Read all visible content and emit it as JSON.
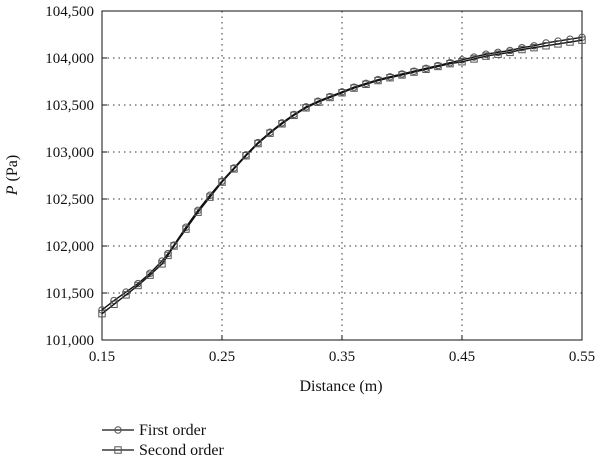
{
  "chart_data": {
    "type": "line",
    "title": "",
    "xlabel": "Distance (m)",
    "ylabel_symbol": "P",
    "ylabel_unit": " (Pa)",
    "xlim": [
      0.15,
      0.55
    ],
    "ylim": [
      101000,
      104500
    ],
    "xticks": [
      "0.15",
      "0.25",
      "0.35",
      "0.45",
      "0.55"
    ],
    "yticks": [
      "101,000",
      "101,500",
      "102,000",
      "102,500",
      "103,000",
      "103,500",
      "104,000",
      "104,500"
    ],
    "grid": true,
    "legend_position": "bottom-left",
    "series": [
      {
        "name": "First order",
        "marker": "circle",
        "x": [
          0.15,
          0.16,
          0.17,
          0.18,
          0.19,
          0.2,
          0.205,
          0.21,
          0.22,
          0.23,
          0.24,
          0.25,
          0.26,
          0.27,
          0.28,
          0.29,
          0.3,
          0.31,
          0.32,
          0.33,
          0.34,
          0.35,
          0.36,
          0.37,
          0.38,
          0.39,
          0.4,
          0.41,
          0.42,
          0.43,
          0.44,
          0.45,
          0.46,
          0.47,
          0.48,
          0.49,
          0.5,
          0.51,
          0.52,
          0.53,
          0.54,
          0.55
        ],
        "y": [
          101320,
          101420,
          101510,
          101600,
          101710,
          101840,
          101920,
          102010,
          102200,
          102380,
          102540,
          102690,
          102830,
          102970,
          103100,
          103210,
          103310,
          103400,
          103480,
          103540,
          103590,
          103640,
          103690,
          103730,
          103770,
          103800,
          103830,
          103860,
          103890,
          103920,
          103950,
          103980,
          104010,
          104040,
          104060,
          104080,
          104110,
          104130,
          104160,
          104180,
          104200,
          104220
        ]
      },
      {
        "name": "Second order",
        "marker": "square",
        "x": [
          0.15,
          0.16,
          0.17,
          0.18,
          0.19,
          0.2,
          0.205,
          0.21,
          0.22,
          0.23,
          0.24,
          0.25,
          0.26,
          0.27,
          0.28,
          0.29,
          0.3,
          0.31,
          0.32,
          0.33,
          0.34,
          0.35,
          0.36,
          0.37,
          0.38,
          0.39,
          0.4,
          0.41,
          0.42,
          0.43,
          0.44,
          0.45,
          0.46,
          0.47,
          0.48,
          0.49,
          0.5,
          0.51,
          0.52,
          0.53,
          0.54,
          0.55
        ],
        "y": [
          101280,
          101380,
          101480,
          101580,
          101690,
          101810,
          101900,
          102000,
          102180,
          102360,
          102520,
          102680,
          102820,
          102960,
          103090,
          103200,
          103300,
          103390,
          103470,
          103530,
          103580,
          103630,
          103680,
          103720,
          103760,
          103790,
          103820,
          103850,
          103880,
          103910,
          103940,
          103960,
          103990,
          104020,
          104040,
          104060,
          104090,
          104110,
          104130,
          104150,
          104170,
          104190
        ]
      }
    ]
  }
}
